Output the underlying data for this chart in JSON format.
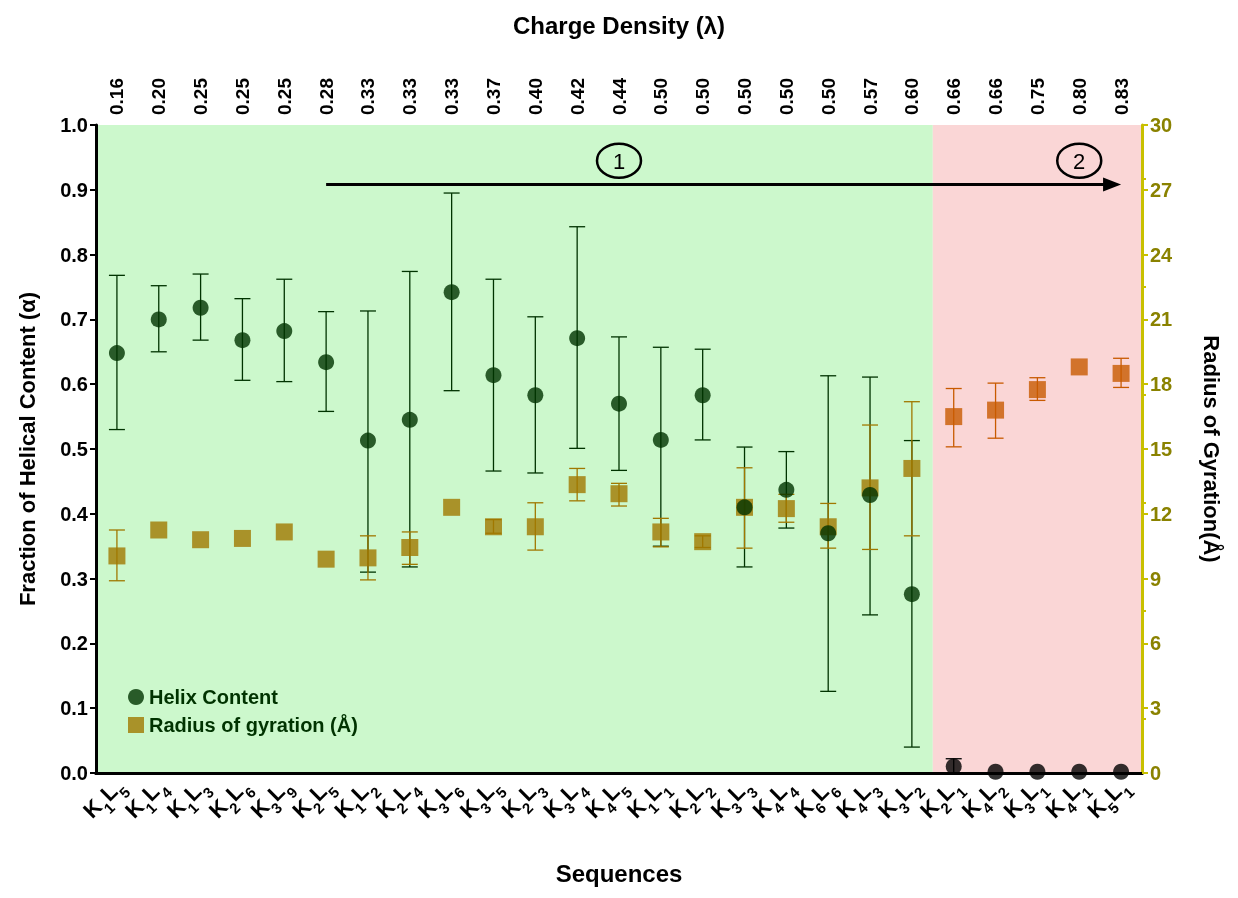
{
  "chart_data": {
    "type": "scatter",
    "xlabel": "Sequences",
    "ylabel": "Fraction of Helical Content (α)",
    "y2label": "Radius of Gyration(Å)",
    "x2label": "Charge Density (λ)",
    "categories": [
      "K$_{1}$L$_{5}$",
      "K$_{1}$L$_{4}$",
      "K$_{1}$L$_{3}$",
      "K$_{2}$L$_{6}$",
      "K$_{3}$L$_{9}$",
      "K$_{2}$L$_{5}$",
      "K$_{1}$L$_{2}$",
      "K$_{2}$L$_{4}$",
      "K$_{3}$L$_{6}$",
      "K$_{3}$L$_{5}$",
      "K$_{2}$L$_{3}$",
      "K$_{3}$L$_{4}$",
      "K$_{4}$L$_{5}$",
      "K$_{1}$L$_{1}$",
      "K$_{2}$L$_{2}$",
      "K$_{3}$L$_{3}$",
      "K$_{4}$L$_{4}$",
      "K$_{6}$L$_{6}$",
      "K$_{4}$L$_{3}$",
      "K$_{3}$L$_{2}$",
      "K$_{2}$L$_{1}$",
      "K$_{4}$L$_{2}$",
      "K$_{3}$L$_{1}$",
      "K$_{4}$L$_{1}$",
      "K$_{5}$L$_{1}$"
    ],
    "series": [
      {
        "name": "Helix Content",
        "marker": "circle",
        "color": "#003300",
        "colors": [
          "#003300",
          "#003300",
          "#003300",
          "#003300",
          "#003300",
          "#003300",
          "#003300",
          "#003300",
          "#003300",
          "#003300",
          "#003300",
          "#003300",
          "#003300",
          "#003300",
          "#003300",
          "#003300",
          "#003300",
          "#003300",
          "#003300",
          "#003300",
          "#000000",
          "#000000",
          "#000000",
          "#000000",
          "#000000"
        ],
        "values": [
          0.648,
          0.7,
          0.718,
          0.668,
          0.682,
          0.634,
          0.513,
          0.545,
          0.742,
          0.614,
          0.583,
          0.671,
          0.57,
          0.514,
          0.583,
          0.41,
          0.437,
          0.37,
          0.429,
          0.276,
          0.01,
          0.002,
          0.002,
          0.002,
          0.002
        ],
        "errors": [
          [
            0.53,
            0.768
          ],
          [
            0.65,
            0.752
          ],
          [
            0.668,
            0.77
          ],
          [
            0.606,
            0.732
          ],
          [
            0.604,
            0.762
          ],
          [
            0.558,
            0.712
          ],
          [
            0.31,
            0.713
          ],
          [
            0.318,
            0.774
          ],
          [
            0.59,
            0.895
          ],
          [
            0.466,
            0.762
          ],
          [
            0.463,
            0.704
          ],
          [
            0.501,
            0.843
          ],
          [
            0.467,
            0.673
          ],
          [
            0.35,
            0.657
          ],
          [
            0.514,
            0.654
          ],
          [
            0.318,
            0.503
          ],
          [
            0.378,
            0.496
          ],
          [
            0.126,
            0.613
          ],
          [
            0.244,
            0.611
          ],
          [
            0.04,
            0.513
          ],
          [
            0.0,
            0.022
          ],
          null,
          null,
          null,
          null
        ]
      },
      {
        "name": "Radius of gyration (Å)",
        "marker": "square",
        "axis": "y2",
        "color": "#a07800",
        "colors": [
          "#a07800",
          "#a07800",
          "#a07800",
          "#a07800",
          "#a07800",
          "#a07800",
          "#a07800",
          "#a07800",
          "#a07800",
          "#a07800",
          "#a07800",
          "#a07800",
          "#a07800",
          "#a07800",
          "#a07800",
          "#a07800",
          "#a07800",
          "#a07800",
          "#a07800",
          "#a07800",
          "#c85a00",
          "#c85a00",
          "#c85a00",
          "#c85a00",
          "#c85a00"
        ],
        "values": [
          10.05,
          11.25,
          10.8,
          10.86,
          11.16,
          9.9,
          9.96,
          10.44,
          12.3,
          11.4,
          11.4,
          13.35,
          12.93,
          11.16,
          10.71,
          12.3,
          12.24,
          11.4,
          13.2,
          14.1,
          16.5,
          16.8,
          17.75,
          18.8,
          18.5
        ],
        "errors": [
          [
            8.9,
            11.25
          ],
          null,
          null,
          null,
          null,
          null,
          [
            8.94,
            10.98
          ],
          [
            9.66,
            11.16
          ],
          null,
          [
            11.1,
            11.73
          ],
          [
            10.32,
            12.51
          ],
          [
            12.6,
            14.1
          ],
          [
            12.36,
            13.41
          ],
          [
            10.47,
            11.79
          ],
          [
            10.44,
            10.98
          ],
          [
            10.41,
            14.13
          ],
          [
            11.61,
            12.9
          ],
          [
            10.41,
            12.48
          ],
          [
            10.35,
            16.11
          ],
          [
            10.98,
            17.19
          ],
          [
            15.1,
            17.8
          ],
          [
            15.5,
            18.05
          ],
          [
            17.25,
            18.3
          ],
          null,
          [
            17.85,
            19.2
          ]
        ]
      }
    ],
    "ylim": [
      0,
      1
    ],
    "yticks": [
      {
        "value": 0,
        "label": "0.0"
      },
      0.1,
      0.2,
      0.3,
      0.4,
      0.5,
      0.6,
      0.7,
      0.8,
      0.9,
      {
        "value": 1,
        "label": "1.0"
      }
    ],
    "y2lim": [
      0,
      30
    ],
    "y2ticks": [
      0,
      3,
      6,
      9,
      12,
      15,
      18,
      21,
      24,
      27,
      30
    ],
    "bands": [
      {
        "axis": "x",
        "from": "K$_{1}$L$_{5}$",
        "to": "K$_{3}$L$_{2}$",
        "color": "#ccf8cc"
      },
      {
        "axis": "x",
        "from": "K$_{2}$L$_{1}$",
        "to": "K$_{5}$L$_{1}$",
        "color": "#fad6d6"
      }
    ],
    "annotations": [
      "1",
      "2",
      "0.16",
      "0.20",
      "0.25",
      "0.25",
      "0.25",
      "0.28",
      "0.33",
      "0.33",
      "0.33",
      "0.37",
      "0.40",
      "0.42",
      "0.44",
      "0.50",
      "0.50",
      "0.50",
      "0.50",
      "0.50",
      "0.57",
      "0.60",
      "0.66",
      "0.66",
      "0.75",
      "0.80",
      "0.83"
    ],
    "legend": "bottom left",
    "grid": false
  }
}
